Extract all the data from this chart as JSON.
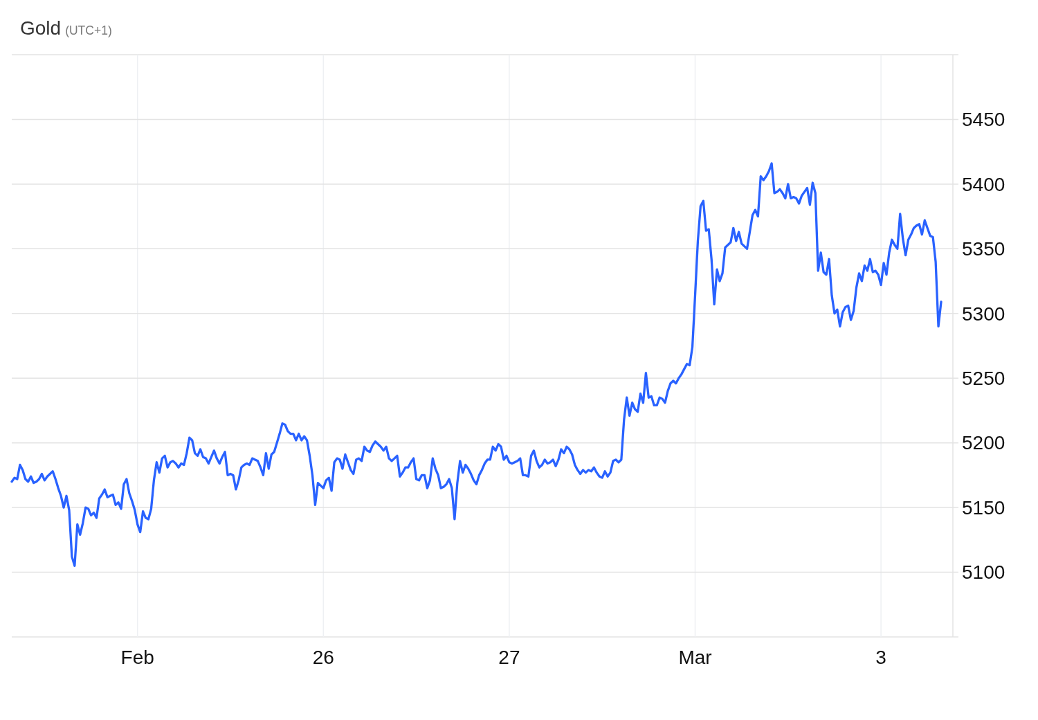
{
  "chart_data": {
    "type": "line",
    "title": "Gold",
    "subtitle": "(UTC+1)",
    "categories": [
      null,
      null,
      null,
      null,
      null,
      null,
      null,
      null,
      null,
      null,
      null,
      null,
      null,
      null,
      null,
      null,
      null,
      null,
      null,
      null,
      null,
      null,
      null,
      null,
      null,
      null,
      null,
      null,
      null,
      null,
      null,
      null,
      null,
      null,
      null,
      null,
      null,
      null,
      null,
      null,
      null,
      null,
      null,
      null,
      null,
      null,
      "Feb",
      null,
      null,
      null,
      null,
      null,
      null,
      null,
      null,
      null,
      null,
      null,
      null,
      null,
      null,
      null,
      null,
      null,
      null,
      null,
      null,
      null,
      null,
      null,
      null,
      null,
      null,
      null,
      null,
      null,
      null,
      null,
      null,
      null,
      null,
      null,
      null,
      null,
      null,
      null,
      null,
      null,
      null,
      null,
      null,
      null,
      null,
      null,
      null,
      null,
      null,
      null,
      null,
      null,
      null,
      null,
      null,
      null,
      null,
      null,
      null,
      null,
      null,
      null,
      null,
      null,
      null,
      null,
      "26",
      null,
      null,
      null,
      null,
      null,
      null,
      null,
      null,
      null,
      null,
      null,
      null,
      null,
      null,
      null,
      null,
      null,
      null,
      null,
      null,
      null,
      null,
      null,
      null,
      null,
      null,
      null,
      null,
      null,
      null,
      null,
      null,
      null,
      null,
      null,
      null,
      null,
      null,
      null,
      null,
      null,
      null,
      null,
      null,
      null,
      null,
      null,
      null,
      null,
      null,
      null,
      null,
      null,
      null,
      null,
      null,
      null,
      null,
      null,
      null,
      null,
      null,
      null,
      null,
      null,
      null,
      null,
      "27",
      null,
      null,
      null,
      null,
      null,
      null,
      null,
      null,
      null,
      null,
      null,
      null,
      null,
      null,
      null,
      null,
      null,
      null,
      null,
      null,
      null,
      null,
      null,
      null,
      null,
      null,
      null,
      null,
      null,
      null,
      null,
      null,
      null,
      null,
      null,
      null,
      null,
      null,
      null,
      null,
      null,
      null,
      null,
      null,
      null,
      null,
      null,
      null,
      null,
      null,
      null,
      null,
      null,
      null,
      null,
      null,
      null,
      null,
      null,
      null,
      null,
      null,
      null,
      null,
      null,
      null,
      null,
      "Mar",
      null,
      null,
      null,
      null,
      null,
      null,
      null,
      null,
      null,
      null,
      null,
      null,
      null,
      null,
      null,
      null,
      null,
      null,
      null,
      null,
      null,
      null,
      null,
      null,
      null,
      null,
      null,
      null,
      null,
      null,
      null,
      null,
      null,
      null,
      null,
      null,
      null,
      null,
      null,
      null,
      null,
      null,
      null,
      null,
      null,
      null,
      null,
      null,
      null,
      null,
      null,
      null,
      null,
      null,
      null,
      null,
      null,
      null,
      null,
      null,
      null,
      null,
      null,
      null,
      null,
      null,
      null,
      "3",
      null,
      null,
      null,
      null,
      null,
      null,
      null,
      null,
      null,
      null,
      null,
      null,
      null,
      null,
      null,
      null,
      null,
      null,
      null,
      null,
      null,
      null
    ],
    "series": [
      {
        "color": "#2962ff",
        "values": [
          5170,
          5173,
          5172,
          5183,
          5179,
          5172,
          5170,
          5174,
          5169,
          5170,
          5172,
          5176,
          5171,
          5174,
          5176,
          5178,
          5172,
          5165,
          5159,
          5150,
          5159,
          5148,
          5112,
          5105,
          5137,
          5129,
          5138,
          5150,
          5149,
          5144,
          5146,
          5142,
          5157,
          5160,
          5164,
          5158,
          5159,
          5160,
          5152,
          5154,
          5149,
          5168,
          5172,
          5161,
          5155,
          5148,
          5137,
          5131,
          5147,
          5142,
          5141,
          5149,
          5171,
          5185,
          5177,
          5188,
          5190,
          5181,
          5185,
          5186,
          5184,
          5181,
          5184,
          5183,
          5192,
          5204,
          5202,
          5192,
          5190,
          5195,
          5189,
          5188,
          5184,
          5189,
          5194,
          5188,
          5184,
          5189,
          5193,
          5175,
          5176,
          5175,
          5164,
          5171,
          5181,
          5183,
          5184,
          5183,
          5188,
          5187,
          5186,
          5181,
          5175,
          5192,
          5180,
          5191,
          5193,
          5200,
          5207,
          5215,
          5214,
          5209,
          5207,
          5207,
          5202,
          5207,
          5202,
          5205,
          5202,
          5190,
          5175,
          5152,
          5169,
          5167,
          5165,
          5171,
          5173,
          5163,
          5185,
          5188,
          5187,
          5180,
          5191,
          5185,
          5179,
          5176,
          5187,
          5188,
          5186,
          5197,
          5194,
          5193,
          5198,
          5201,
          5199,
          5197,
          5194,
          5197,
          5188,
          5186,
          5188,
          5190,
          5174,
          5177,
          5181,
          5181,
          5185,
          5188,
          5172,
          5171,
          5175,
          5175,
          5165,
          5171,
          5188,
          5180,
          5175,
          5165,
          5166,
          5168,
          5172,
          5165,
          5141,
          5169,
          5186,
          5177,
          5183,
          5180,
          5176,
          5171,
          5168,
          5175,
          5179,
          5184,
          5187,
          5187,
          5197,
          5194,
          5199,
          5197,
          5187,
          5190,
          5185,
          5184,
          5185,
          5186,
          5188,
          5175,
          5175,
          5174,
          5190,
          5194,
          5186,
          5181,
          5183,
          5187,
          5184,
          5185,
          5187,
          5182,
          5187,
          5195,
          5192,
          5197,
          5195,
          5191,
          5183,
          5179,
          5176,
          5179,
          5177,
          5179,
          5178,
          5181,
          5177,
          5174,
          5173,
          5178,
          5174,
          5177,
          5186,
          5187,
          5185,
          5187,
          5218,
          5235,
          5221,
          5231,
          5226,
          5224,
          5238,
          5231,
          5254,
          5235,
          5236,
          5229,
          5229,
          5235,
          5234,
          5231,
          5240,
          5246,
          5248,
          5246,
          5250,
          5253,
          5257,
          5261,
          5260,
          5274,
          5314,
          5356,
          5383,
          5387,
          5364,
          5365,
          5342,
          5307,
          5334,
          5325,
          5331,
          5351,
          5353,
          5355,
          5366,
          5356,
          5363,
          5354,
          5352,
          5350,
          5363,
          5376,
          5380,
          5375,
          5406,
          5403,
          5406,
          5410,
          5416,
          5393,
          5394,
          5396,
          5393,
          5389,
          5400,
          5389,
          5390,
          5389,
          5385,
          5391,
          5394,
          5397,
          5384,
          5401,
          5393,
          5333,
          5347,
          5332,
          5330,
          5342,
          5314,
          5300,
          5303,
          5290,
          5301,
          5305,
          5306,
          5295,
          5302,
          5320,
          5331,
          5325,
          5337,
          5333,
          5342,
          5332,
          5333,
          5330,
          5322,
          5339,
          5330,
          5347,
          5357,
          5353,
          5350,
          5377,
          5358,
          5345,
          5357,
          5361,
          5366,
          5368,
          5369,
          5361,
          5372,
          5366,
          5360,
          5359,
          5340,
          5290,
          5309
        ]
      }
    ],
    "ylim": [
      5050,
      5500
    ],
    "yticks": [
      5100,
      5150,
      5200,
      5250,
      5300,
      5350,
      5400,
      5450
    ],
    "grid": true
  }
}
